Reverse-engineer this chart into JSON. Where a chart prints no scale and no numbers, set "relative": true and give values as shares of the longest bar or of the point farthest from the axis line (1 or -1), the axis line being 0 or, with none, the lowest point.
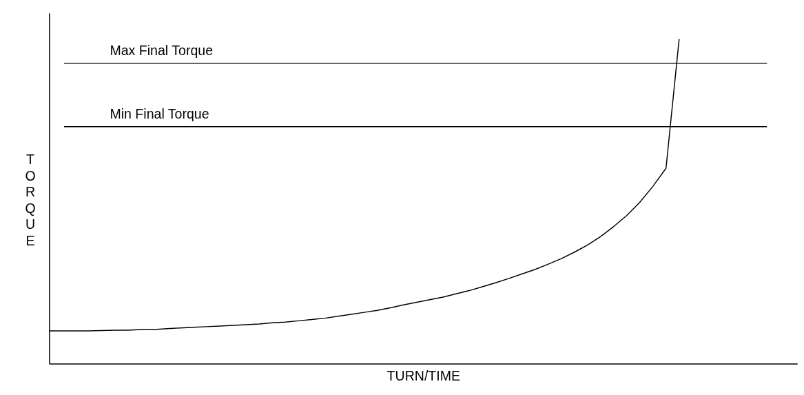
{
  "chart_data": {
    "type": "line",
    "relative": true,
    "xlabel": "TURN/TIME",
    "ylabel": "TORQUE",
    "categories": [
      null,
      null,
      null,
      null,
      null,
      null,
      null,
      null,
      null,
      null,
      null,
      null,
      null,
      null,
      null,
      null,
      null,
      null,
      null,
      null,
      null,
      null,
      null,
      null,
      null,
      null,
      null,
      null,
      null,
      null,
      null,
      null,
      null,
      null,
      null,
      null,
      null,
      null,
      null,
      null,
      null,
      null,
      null,
      null,
      null,
      null,
      null,
      null,
      null,
      null,
      null,
      null,
      null,
      null,
      null,
      null,
      null,
      null
    ],
    "series": [
      {
        "color": "#000000",
        "values": [
          0.101,
          0.101,
          0.101,
          0.101,
          0.102,
          0.103,
          0.103,
          0.105,
          0.105,
          0.108,
          0.11,
          0.112,
          0.114,
          0.116,
          0.118,
          0.12,
          0.122,
          0.126,
          0.128,
          0.132,
          0.136,
          0.14,
          0.146,
          0.152,
          0.158,
          0.164,
          0.172,
          0.181,
          0.189,
          0.197,
          0.205,
          0.215,
          0.225,
          0.237,
          0.249,
          0.262,
          0.276,
          0.29,
          0.306,
          0.323,
          0.343,
          0.365,
          0.391,
          0.422,
          0.456,
          0.497,
          0.546,
          0.602,
          1.0,
          null,
          null,
          null,
          null,
          null,
          null,
          null,
          null,
          null
        ]
      }
    ],
    "ref_lines": [
      {
        "axis": "y",
        "value": 0.925,
        "label": "Max Final Torque",
        "color": "#000000"
      },
      {
        "axis": "y",
        "value": 0.73,
        "label": "Min Final Torque",
        "color": "#000000"
      }
    ],
    "tick_labels": false,
    "grid": false,
    "legend": false,
    "marker": "none",
    "line_style": "solid"
  }
}
